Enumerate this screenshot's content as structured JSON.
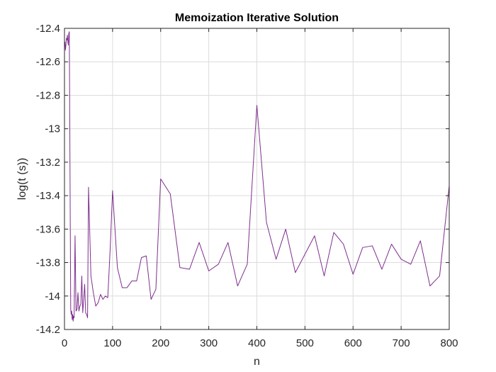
{
  "chart_data": {
    "type": "line",
    "title": "Memoization Iterative Solution",
    "xlabel": "n",
    "ylabel": "log(t (s))",
    "xlim": [
      0,
      800
    ],
    "ylim": [
      -14.2,
      -12.4
    ],
    "grid": true,
    "xticks": [
      "0",
      "100",
      "200",
      "300",
      "400",
      "500",
      "600",
      "700",
      "800"
    ],
    "yticks": [
      "-12.4",
      "-12.6",
      "-12.8",
      "-13",
      "-13.2",
      "-13.4",
      "-13.6",
      "-13.8",
      "-14",
      "-14.2"
    ],
    "colors": {
      "line": "#7E2F8E",
      "grid": "#dcdcdc",
      "axes": "#262626"
    },
    "series": [
      {
        "x": [
          1,
          2,
          3,
          4,
          5,
          6,
          7,
          8,
          9,
          10,
          11,
          12,
          13,
          14,
          15,
          16,
          17,
          18,
          19,
          20,
          22,
          24,
          26,
          28,
          30,
          32,
          34,
          36,
          38,
          40,
          42,
          44,
          46,
          48,
          50,
          55,
          60,
          65,
          70,
          75,
          80,
          85,
          90,
          95,
          100,
          110,
          120,
          130,
          140,
          150,
          160,
          170,
          180,
          190,
          200,
          220,
          240,
          260,
          280,
          300,
          320,
          340,
          360,
          380,
          400,
          420,
          440,
          460,
          480,
          500,
          520,
          540,
          560,
          580,
          600,
          620,
          640,
          660,
          680,
          700,
          720,
          740,
          760,
          780,
          800
        ],
        "values": [
          -12.48,
          -12.53,
          -12.5,
          -12.46,
          -12.47,
          -12.44,
          -12.48,
          -12.5,
          -12.43,
          -12.42,
          -12.95,
          -13.55,
          -14.08,
          -14.11,
          -14.09,
          -14.14,
          -14.11,
          -14.15,
          -14.12,
          -14.13,
          -13.64,
          -14.09,
          -14.08,
          -13.98,
          -14.09,
          -14.06,
          -14.05,
          -13.88,
          -14.1,
          -14.02,
          -13.93,
          -14.1,
          -14.11,
          -14.13,
          -13.35,
          -13.88,
          -13.98,
          -14.06,
          -14.04,
          -13.99,
          -14.02,
          -14.0,
          -14.01,
          -13.72,
          -13.37,
          -13.83,
          -13.95,
          -13.95,
          -13.91,
          -13.91,
          -13.77,
          -13.76,
          -14.02,
          -13.96,
          -13.3,
          -13.39,
          -13.83,
          -13.84,
          -13.68,
          -13.85,
          -13.81,
          -13.68,
          -13.94,
          -13.81,
          -12.86,
          -13.56,
          -13.78,
          -13.6,
          -13.86,
          -13.75,
          -13.64,
          -13.88,
          -13.62,
          -13.69,
          -13.87,
          -13.71,
          -13.7,
          -13.84,
          -13.69,
          -13.78,
          -13.81,
          -13.67,
          -13.94,
          -13.88,
          -13.34
        ]
      }
    ]
  }
}
